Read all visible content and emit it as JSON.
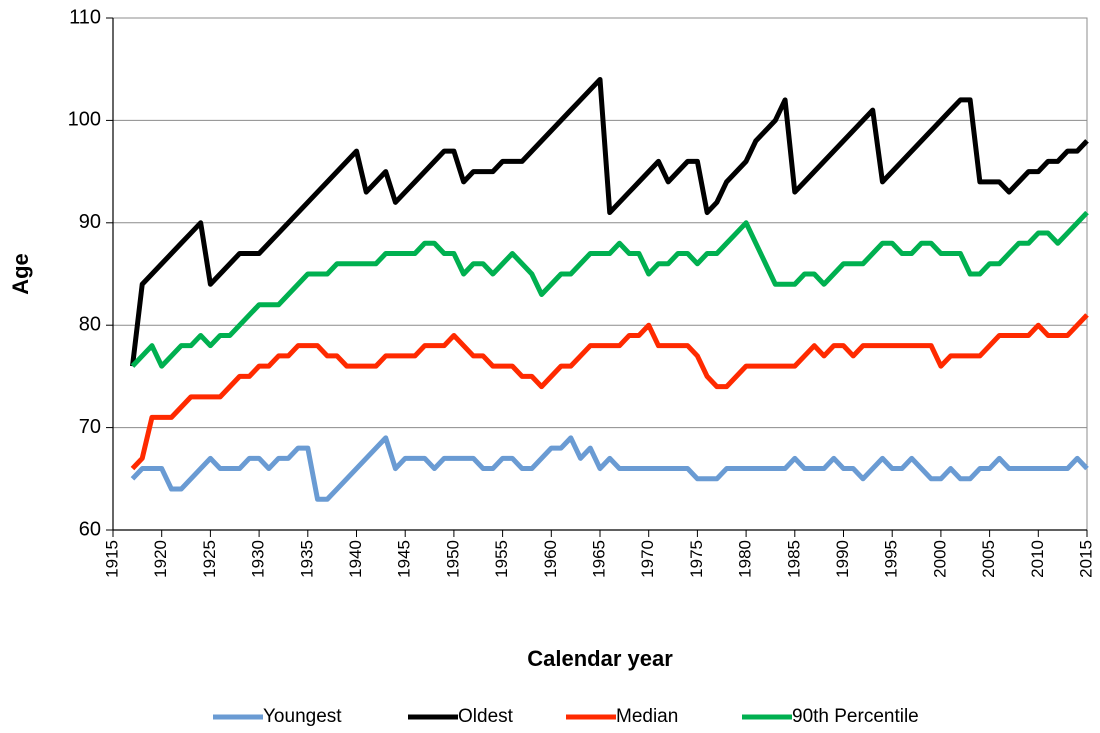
{
  "chart_data": {
    "type": "line",
    "x_label": "Calendar year",
    "y_label": "Age",
    "x": [
      1917,
      1918,
      1919,
      1920,
      1921,
      1922,
      1923,
      1924,
      1925,
      1926,
      1927,
      1928,
      1929,
      1930,
      1931,
      1932,
      1933,
      1934,
      1935,
      1936,
      1937,
      1938,
      1939,
      1940,
      1941,
      1942,
      1943,
      1944,
      1945,
      1946,
      1947,
      1948,
      1949,
      1950,
      1951,
      1952,
      1953,
      1954,
      1955,
      1956,
      1957,
      1958,
      1959,
      1960,
      1961,
      1962,
      1963,
      1964,
      1965,
      1966,
      1967,
      1968,
      1969,
      1970,
      1971,
      1972,
      1973,
      1974,
      1975,
      1976,
      1977,
      1978,
      1979,
      1980,
      1981,
      1982,
      1983,
      1984,
      1985,
      1986,
      1987,
      1988,
      1989,
      1990,
      1991,
      1992,
      1993,
      1994,
      1995,
      1996,
      1997,
      1998,
      1999,
      2000,
      2001,
      2002,
      2003,
      2004,
      2005,
      2006,
      2007,
      2008,
      2009,
      2010,
      2011,
      2012,
      2013,
      2014,
      2015
    ],
    "series": [
      {
        "name": "Youngest",
        "color": "#6a9bd3",
        "values": [
          65,
          66,
          66,
          66,
          64,
          64,
          65,
          66,
          67,
          66,
          66,
          66,
          67,
          67,
          66,
          67,
          67,
          68,
          68,
          63,
          63,
          64,
          65,
          66,
          67,
          68,
          69,
          66,
          67,
          67,
          67,
          66,
          67,
          67,
          67,
          67,
          66,
          66,
          67,
          67,
          66,
          66,
          67,
          68,
          68,
          69,
          67,
          68,
          66,
          67,
          66,
          66,
          66,
          66,
          66,
          66,
          66,
          66,
          65,
          65,
          65,
          66,
          66,
          66,
          66,
          66,
          66,
          66,
          67,
          66,
          66,
          66,
          67,
          66,
          66,
          65,
          66,
          67,
          66,
          66,
          67,
          66,
          65,
          65,
          66,
          65,
          65,
          66,
          66,
          67,
          66,
          66,
          66,
          66,
          66,
          66,
          66,
          67,
          66
        ]
      },
      {
        "name": "Oldest",
        "color": "#000000",
        "values": [
          76,
          84,
          85,
          86,
          87,
          88,
          89,
          90,
          84,
          85,
          86,
          87,
          87,
          87,
          88,
          89,
          90,
          91,
          92,
          93,
          94,
          95,
          96,
          97,
          93,
          94,
          95,
          92,
          93,
          94,
          95,
          96,
          97,
          97,
          94,
          95,
          95,
          95,
          96,
          96,
          96,
          97,
          98,
          99,
          100,
          101,
          102,
          103,
          104,
          91,
          92,
          93,
          94,
          95,
          96,
          94,
          95,
          96,
          96,
          91,
          92,
          94,
          95,
          96,
          98,
          99,
          100,
          102,
          93,
          94,
          95,
          96,
          97,
          98,
          99,
          100,
          101,
          94,
          95,
          96,
          97,
          98,
          99,
          100,
          101,
          102,
          102,
          94,
          94,
          94,
          93,
          94,
          95,
          95,
          96,
          96,
          97,
          97,
          98
        ]
      },
      {
        "name": "Median",
        "color": "#ff2a00",
        "values": [
          66,
          67,
          71,
          71,
          71,
          72,
          73,
          73,
          73,
          73,
          74,
          75,
          75,
          76,
          76,
          77,
          77,
          78,
          78,
          78,
          77,
          77,
          76,
          76,
          76,
          76,
          77,
          77,
          77,
          77,
          78,
          78,
          78,
          79,
          78,
          77,
          77,
          76,
          76,
          76,
          75,
          75,
          74,
          75,
          76,
          76,
          77,
          78,
          78,
          78,
          78,
          79,
          79,
          80,
          78,
          78,
          78,
          78,
          77,
          75,
          74,
          74,
          75,
          76,
          76,
          76,
          76,
          76,
          76,
          77,
          78,
          77,
          78,
          78,
          77,
          78,
          78,
          78,
          78,
          78,
          78,
          78,
          78,
          76,
          77,
          77,
          77,
          77,
          78,
          79,
          79,
          79,
          79,
          80,
          79,
          79,
          79,
          80,
          81
        ]
      },
      {
        "name": "90th Percentile",
        "color": "#00b050",
        "values": [
          76,
          77,
          78,
          76,
          77,
          78,
          78,
          79,
          78,
          79,
          79,
          80,
          81,
          82,
          82,
          82,
          83,
          84,
          85,
          85,
          85,
          86,
          86,
          86,
          86,
          86,
          87,
          87,
          87,
          87,
          88,
          88,
          87,
          87,
          85,
          86,
          86,
          85,
          86,
          87,
          86,
          85,
          83,
          84,
          85,
          85,
          86,
          87,
          87,
          87,
          88,
          87,
          87,
          85,
          86,
          86,
          87,
          87,
          86,
          87,
          87,
          88,
          89,
          90,
          88,
          86,
          84,
          84,
          84,
          85,
          85,
          84,
          85,
          86,
          86,
          86,
          87,
          88,
          88,
          87,
          87,
          88,
          88,
          87,
          87,
          87,
          85,
          85,
          86,
          86,
          87,
          88,
          88,
          89,
          89,
          88,
          89,
          90,
          91
        ]
      }
    ],
    "xlim": [
      1915,
      2015
    ],
    "xticks": [
      1915,
      1920,
      1925,
      1930,
      1935,
      1940,
      1945,
      1950,
      1955,
      1960,
      1965,
      1970,
      1975,
      1980,
      1985,
      1990,
      1995,
      2000,
      2005,
      2010,
      2015
    ],
    "ylim": [
      60,
      110
    ],
    "yticks": [
      60,
      70,
      80,
      90,
      100,
      110
    ],
    "grid": true,
    "legend": "bottom"
  }
}
